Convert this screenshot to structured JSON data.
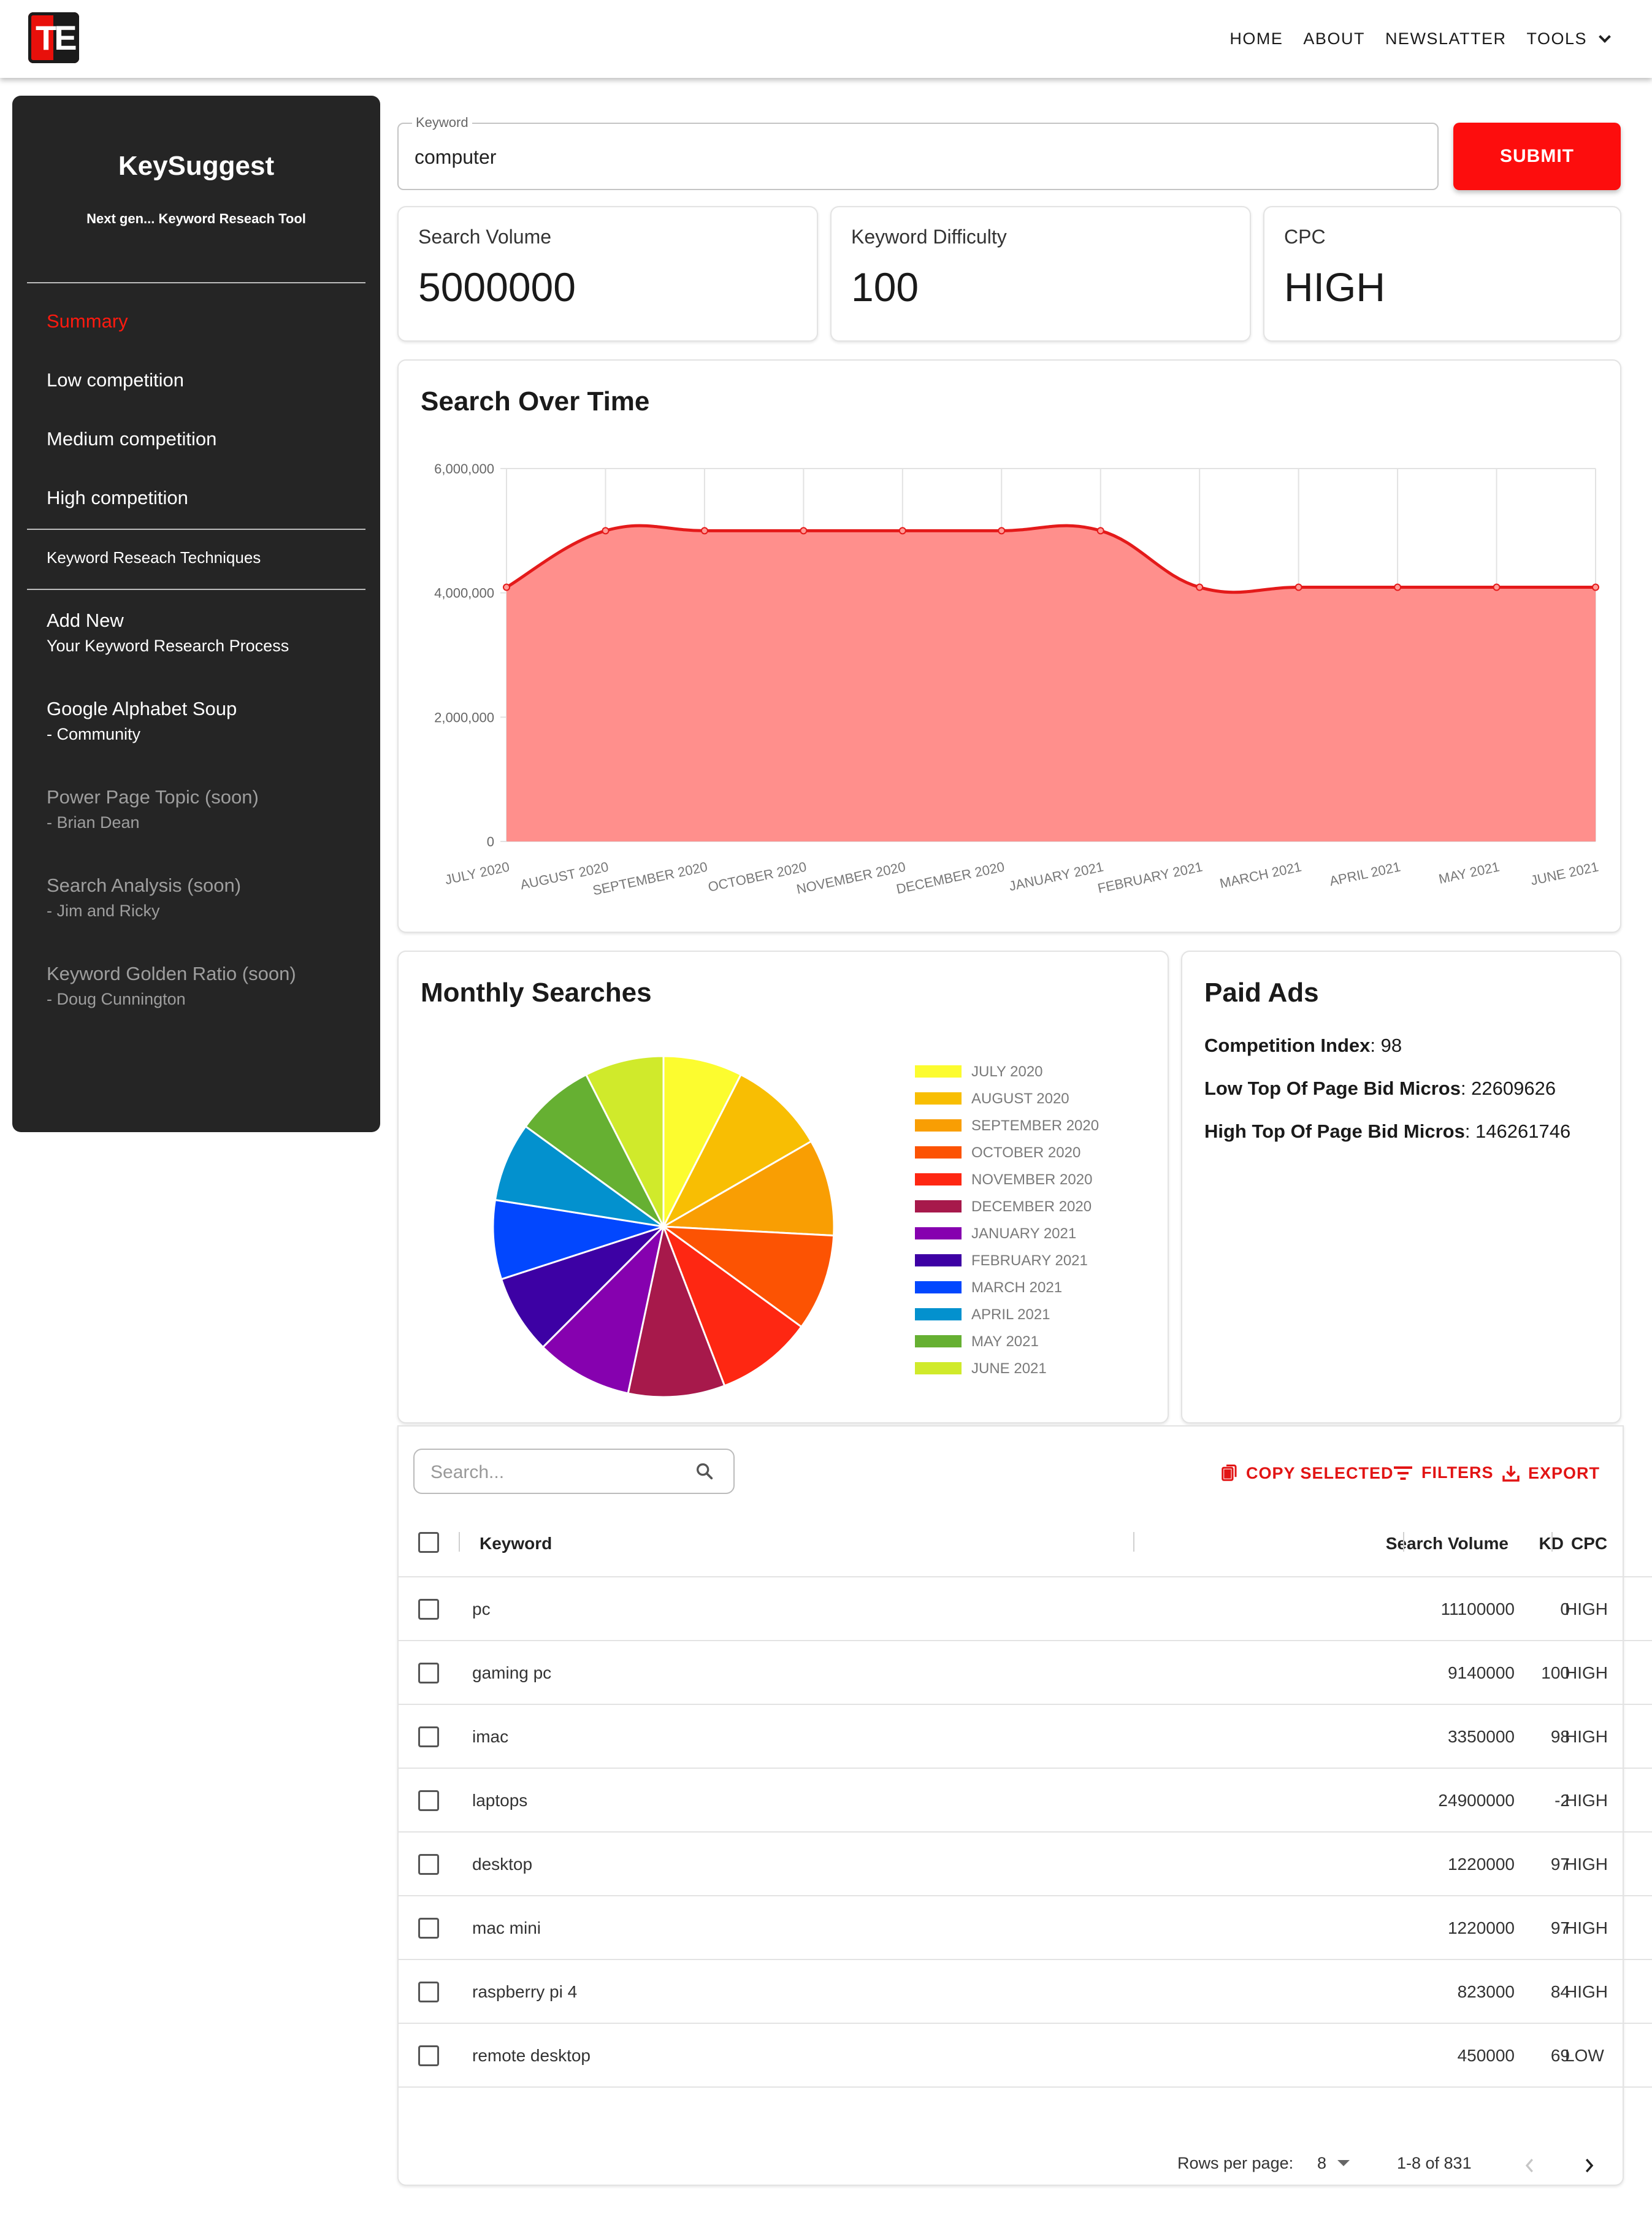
{
  "header": {
    "logo_text": "TE",
    "nav": [
      "HOME",
      "ABOUT",
      "NEWSLATTER",
      "TOOLS"
    ]
  },
  "sidebar": {
    "brand": "KeySuggest",
    "tagline": "Next gen... Keyword Reseach Tool",
    "items": [
      {
        "label": "Summary"
      },
      {
        "label": "Low competition"
      },
      {
        "label": "Medium competition"
      },
      {
        "label": "High competition"
      },
      {
        "label": "Keyword Reseach Techniques"
      },
      {
        "label": "Add New",
        "sub": "Your Keyword Research Process"
      },
      {
        "label": "Google Alphabet Soup",
        "sub": "- Community"
      },
      {
        "label": "Power Page Topic (soon)",
        "sub": "- Brian Dean"
      },
      {
        "label": "Search Analysis (soon)",
        "sub": "- Jim and Ricky"
      },
      {
        "label": "Keyword Golden Ratio (soon)",
        "sub": "- Doug Cunnington"
      }
    ]
  },
  "search": {
    "label": "Keyword",
    "value": "computer",
    "submit_label": "SUBMIT"
  },
  "stats": [
    {
      "label": "Search Volume",
      "value": "5000000"
    },
    {
      "label": "Keyword Difficulty",
      "value": "100"
    },
    {
      "label": "CPC",
      "value": "HIGH"
    }
  ],
  "search_over_time": {
    "title": "Search Over Time"
  },
  "monthly_searches": {
    "title": "Monthly Searches"
  },
  "chart_data": [
    {
      "type": "area",
      "title": "Search Over Time",
      "x": [
        "JULY 2020",
        "AUGUST 2020",
        "SEPTEMBER 2020",
        "OCTOBER 2020",
        "NOVEMBER 2020",
        "DECEMBER 2020",
        "JANUARY 2021",
        "FEBRUARY 2021",
        "MARCH 2021",
        "APRIL 2021",
        "MAY 2021",
        "JUNE 2021"
      ],
      "values": [
        4090000,
        5000000,
        5000000,
        5000000,
        5000000,
        5000000,
        5000000,
        4090000,
        4090000,
        4090000,
        4090000,
        4090000
      ],
      "yticks": [
        "0",
        "2,000,000",
        "4,000,000",
        "6,000,000"
      ],
      "ylim": [
        0,
        6000000
      ],
      "grid": true,
      "color": "#ff8f8c",
      "line_color": "#e41a1a"
    },
    {
      "type": "pie",
      "title": "Monthly Searches",
      "categories": [
        "JULY 2020",
        "AUGUST 2020",
        "SEPTEMBER 2020",
        "OCTOBER 2020",
        "NOVEMBER 2020",
        "DECEMBER 2020",
        "JANUARY 2021",
        "FEBRUARY 2021",
        "MARCH 2021",
        "APRIL 2021",
        "MAY 2021",
        "JUNE 2021"
      ],
      "values": [
        4090000,
        5000000,
        5000000,
        5000000,
        5000000,
        5000000,
        5000000,
        4090000,
        4090000,
        4090000,
        4090000,
        4090000
      ],
      "colors": [
        "#fcfc2f",
        "#f8be03",
        "#f99e03",
        "#fc5303",
        "#fe2712",
        "#a7194b",
        "#8601af",
        "#3d01a4",
        "#0247fe",
        "#0391ce",
        "#66b032",
        "#d0ea2b"
      ],
      "legend_position": "right"
    }
  ],
  "paid_ads": {
    "title": "Paid Ads",
    "lines": [
      {
        "label": "Competition Index",
        "value": ": 98"
      },
      {
        "label": "Low Top Of Page Bid Micros",
        "value": ": 22609626"
      },
      {
        "label": "High Top Of Page Bid Micros",
        "value": ": 146261746"
      }
    ]
  },
  "table": {
    "search_placeholder": "Search...",
    "toolbar": {
      "copy": "COPY SELECTED",
      "filters": "FILTERS",
      "export": "EXPORT"
    },
    "columns": [
      "Keyword",
      "Search Volume",
      "KD",
      "CPC"
    ],
    "rows": [
      [
        "pc",
        "11100000",
        "0",
        "HIGH"
      ],
      [
        "gaming pc",
        "9140000",
        "100",
        "HIGH"
      ],
      [
        "imac",
        "3350000",
        "98",
        "HIGH"
      ],
      [
        "laptops",
        "24900000",
        "-2",
        "HIGH"
      ],
      [
        "desktop",
        "1220000",
        "97",
        "HIGH"
      ],
      [
        "mac mini",
        "1220000",
        "97",
        "HIGH"
      ],
      [
        "raspberry pi 4",
        "823000",
        "84",
        "HIGH"
      ],
      [
        "remote desktop",
        "450000",
        "69",
        "LOW"
      ]
    ],
    "footer": {
      "rows_per_page_label": "Rows per page:",
      "rows_per_page": "8",
      "range": "1-8 of 831"
    }
  }
}
